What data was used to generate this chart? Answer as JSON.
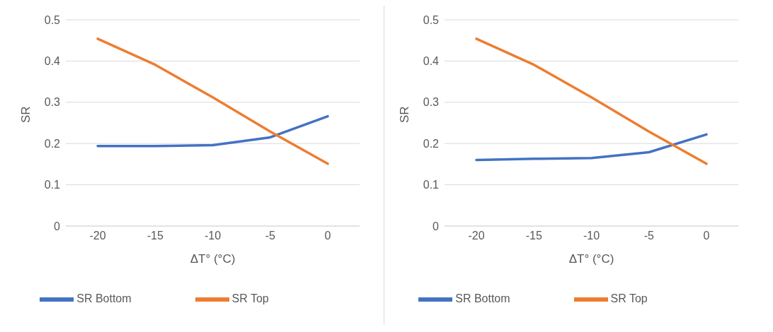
{
  "chart_data": [
    {
      "type": "line",
      "xlabel": "ΔT° (°C)",
      "ylabel": "SR",
      "categories": [
        "-20",
        "-15",
        "-10",
        "-5",
        "0"
      ],
      "ylim": [
        0,
        0.5
      ],
      "yticks": [
        0,
        0.1,
        0.2,
        0.3,
        0.4,
        0.5
      ],
      "grid": "y",
      "legend": "bottom",
      "marker": "none",
      "line_style": "solid",
      "series": [
        {
          "name": "SR Bottom",
          "color": "#4472c4",
          "values": [
            0.194,
            0.194,
            0.196,
            0.215,
            0.266
          ]
        },
        {
          "name": "SR Top",
          "color": "#ed7d31",
          "values": [
            0.454,
            0.391,
            0.312,
            0.229,
            0.151
          ]
        }
      ]
    },
    {
      "type": "line",
      "xlabel": "ΔT° (°C)",
      "ylabel": "SR",
      "categories": [
        "-20",
        "-15",
        "-10",
        "-5",
        "0"
      ],
      "ylim": [
        0,
        0.5
      ],
      "yticks": [
        0,
        0.1,
        0.2,
        0.3,
        0.4,
        0.5
      ],
      "grid": "y",
      "legend": "bottom",
      "marker": "none",
      "line_style": "solid",
      "series": [
        {
          "name": "SR Bottom",
          "color": "#4472c4",
          "values": [
            0.16,
            0.163,
            0.165,
            0.179,
            0.222
          ]
        },
        {
          "name": "SR Top",
          "color": "#ed7d31",
          "values": [
            0.454,
            0.391,
            0.312,
            0.229,
            0.151
          ]
        }
      ]
    }
  ]
}
